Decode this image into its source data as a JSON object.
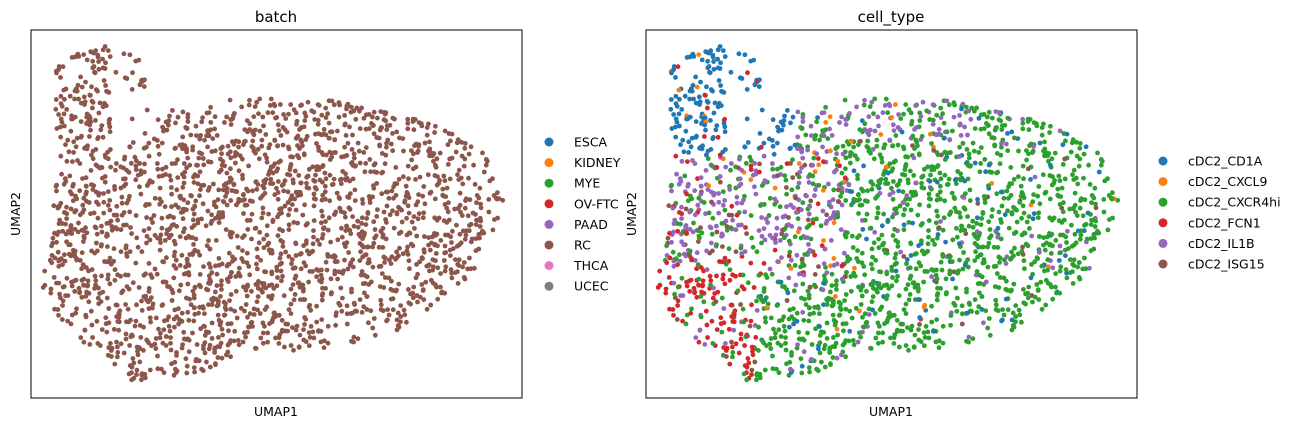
{
  "chart_data": [
    {
      "type": "scatter",
      "title": "batch",
      "xlabel": "UMAP1",
      "ylabel": "UMAP2",
      "ticks": false,
      "legend": {
        "placement": "right",
        "entries": [
          {
            "label": "ESCA",
            "color": "#1f77b4"
          },
          {
            "label": "KIDNEY",
            "color": "#ff7f0e"
          },
          {
            "label": "MYE",
            "color": "#2ca02c"
          },
          {
            "label": "OV-FTC",
            "color": "#d62728"
          },
          {
            "label": "PAAD",
            "color": "#9467bd"
          },
          {
            "label": "RC",
            "color": "#8c564b"
          },
          {
            "label": "THCA",
            "color": "#e377c2"
          },
          {
            "label": "UCEC",
            "color": "#7f7f7f"
          }
        ]
      },
      "series": [
        {
          "name": "RC",
          "color": "#8c564b",
          "approx_point_count": 2200
        }
      ]
    },
    {
      "type": "scatter",
      "title": "cell_type",
      "xlabel": "UMAP1",
      "ylabel": "UMAP2",
      "ticks": false,
      "legend": {
        "placement": "right",
        "entries": [
          {
            "label": "cDC2_CD1A",
            "color": "#1f77b4"
          },
          {
            "label": "cDC2_CXCL9",
            "color": "#ff7f0e"
          },
          {
            "label": "cDC2_CXCR4hi",
            "color": "#2ca02c"
          },
          {
            "label": "cDC2_FCN1",
            "color": "#d62728"
          },
          {
            "label": "cDC2_IL1B",
            "color": "#9467bd"
          },
          {
            "label": "cDC2_ISG15",
            "color": "#8c564b"
          }
        ]
      },
      "series": [
        {
          "name": "cDC2_CD1A",
          "color": "#1f77b4",
          "approx_point_count": 230
        },
        {
          "name": "cDC2_CXCL9",
          "color": "#ff7f0e",
          "approx_point_count": 35
        },
        {
          "name": "cDC2_CXCR4hi",
          "color": "#2ca02c",
          "approx_point_count": 1100
        },
        {
          "name": "cDC2_FCN1",
          "color": "#d62728",
          "approx_point_count": 300
        },
        {
          "name": "cDC2_IL1B",
          "color": "#9467bd",
          "approx_point_count": 420
        },
        {
          "name": "cDC2_ISG15",
          "color": "#8c564b",
          "approx_point_count": 60
        }
      ]
    }
  ]
}
